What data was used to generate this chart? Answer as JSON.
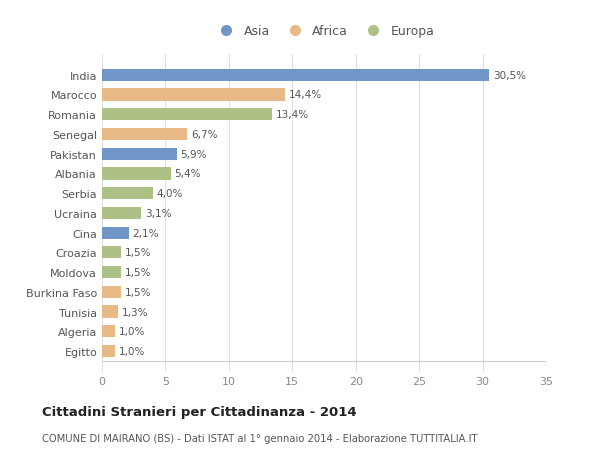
{
  "countries": [
    "India",
    "Marocco",
    "Romania",
    "Senegal",
    "Pakistan",
    "Albania",
    "Serbia",
    "Ucraina",
    "Cina",
    "Croazia",
    "Moldova",
    "Burkina Faso",
    "Tunisia",
    "Algeria",
    "Egitto"
  ],
  "values": [
    30.5,
    14.4,
    13.4,
    6.7,
    5.9,
    5.4,
    4.0,
    3.1,
    2.1,
    1.5,
    1.5,
    1.5,
    1.3,
    1.0,
    1.0
  ],
  "labels": [
    "30,5%",
    "14,4%",
    "13,4%",
    "6,7%",
    "5,9%",
    "5,4%",
    "4,0%",
    "3,1%",
    "2,1%",
    "1,5%",
    "1,5%",
    "1,5%",
    "1,3%",
    "1,0%",
    "1,0%"
  ],
  "continents": [
    "Asia",
    "Africa",
    "Europa",
    "Africa",
    "Asia",
    "Europa",
    "Europa",
    "Europa",
    "Asia",
    "Europa",
    "Europa",
    "Africa",
    "Africa",
    "Africa",
    "Africa"
  ],
  "colors": {
    "Asia": "#7096c8",
    "Africa": "#e8b887",
    "Europa": "#adc085"
  },
  "title": "Cittadini Stranieri per Cittadinanza - 2014",
  "subtitle": "COMUNE DI MAIRANO (BS) - Dati ISTAT al 1° gennaio 2014 - Elaborazione TUTTITALIA.IT",
  "xlim": [
    0,
    35
  ],
  "xticks": [
    0,
    5,
    10,
    15,
    20,
    25,
    30,
    35
  ],
  "background_color": "#ffffff",
  "plot_background": "#ffffff",
  "grid_color": "#e0e0e0"
}
